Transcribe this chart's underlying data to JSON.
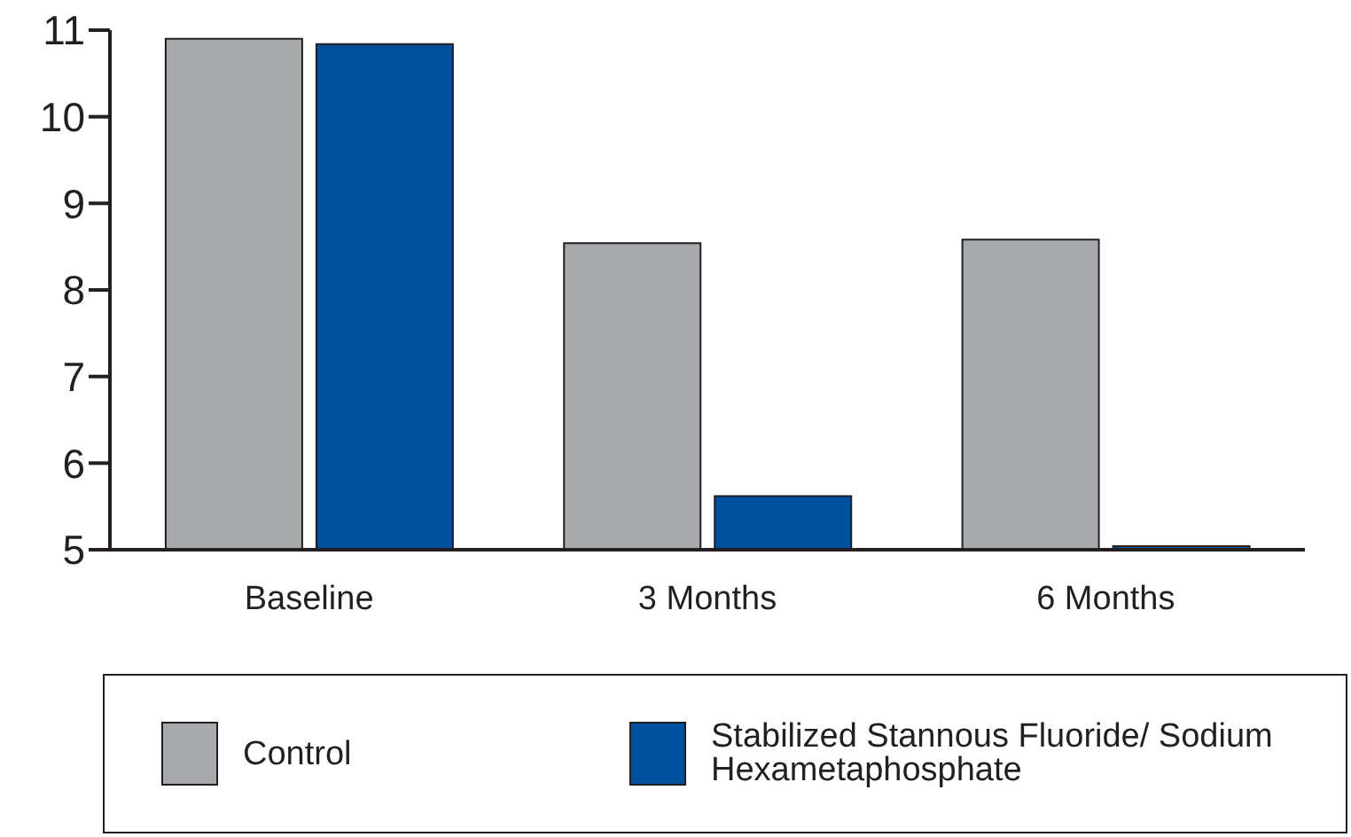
{
  "chart_data": {
    "type": "bar",
    "categories": [
      "Baseline",
      "3 Months",
      "6 Months"
    ],
    "series": [
      {
        "name": "Control",
        "color": "#a7a9ac",
        "values": [
          10.9,
          8.54,
          8.58
        ]
      },
      {
        "name": "Stabilized Stannous Fluoride/ Sodium Hexametaphosphate",
        "color": "#0050a0",
        "values": [
          10.84,
          5.62,
          5.04
        ]
      }
    ],
    "ylim": [
      5,
      11
    ],
    "yticks": [
      5,
      6,
      7,
      8,
      9,
      10,
      11
    ],
    "grid": false,
    "legend": "bottom"
  }
}
